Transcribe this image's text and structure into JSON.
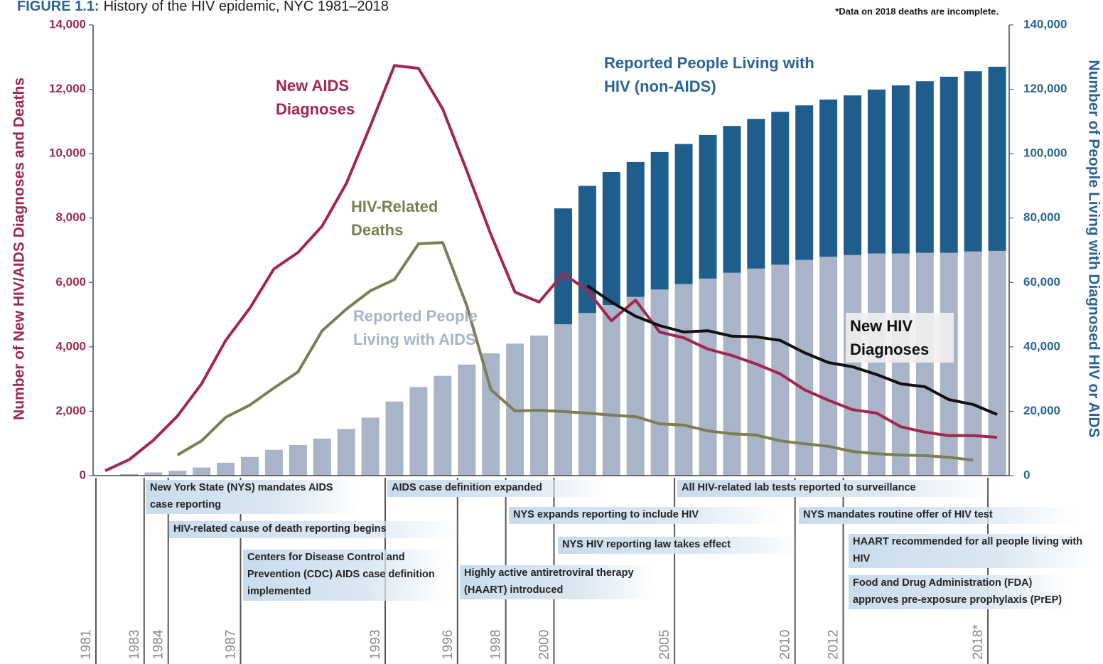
{
  "chart_data": {
    "type": "combo",
    "figure_label": "FIGURE 1.1:",
    "title": "History of the HIV epidemic, NYC 1981–2018",
    "footnote": "*Data on 2018 deaths are incomplete.",
    "y_label": "Number of New HIV/AIDS Diagnoses and Deaths",
    "y2_label": "Number of People Living with Diagnosed HIV or AIDS",
    "x": [
      1981,
      1982,
      1983,
      1984,
      1985,
      1986,
      1987,
      1988,
      1989,
      1990,
      1991,
      1992,
      1993,
      1994,
      1995,
      1996,
      1997,
      1998,
      1999,
      2000,
      2001,
      2002,
      2003,
      2004,
      2005,
      2006,
      2007,
      2008,
      2009,
      2010,
      2011,
      2012,
      2013,
      2014,
      2015,
      2016,
      2017,
      2018
    ],
    "xlim": [
      1980.5,
      2018.5
    ],
    "xticks": [
      1981,
      1983,
      1984,
      1987,
      1993,
      1996,
      1998,
      2000,
      2005,
      2010,
      2012,
      {
        "value": 2018,
        "label": "2018*"
      }
    ],
    "ylim": [
      0,
      14000
    ],
    "yticks": [
      0,
      {
        "value": 2000,
        "label": "2,000"
      },
      {
        "value": 4000,
        "label": "4,000"
      },
      {
        "value": 6000,
        "label": "6,000"
      },
      {
        "value": 8000,
        "label": "8,000"
      },
      {
        "value": 10000,
        "label": "10,000"
      },
      {
        "value": 12000,
        "label": "12,000"
      },
      {
        "value": 14000,
        "label": "14,000"
      }
    ],
    "y2lim": [
      0,
      140000
    ],
    "y2ticks": [
      0,
      {
        "value": 20000,
        "label": "20,000"
      },
      {
        "value": 40000,
        "label": "40,000"
      },
      {
        "value": 60000,
        "label": "60,000"
      },
      {
        "value": 80000,
        "label": "80,000"
      },
      {
        "value": 100000,
        "label": "100,000"
      },
      {
        "value": 120000,
        "label": "120,000"
      },
      {
        "value": 140000,
        "label": "140,000"
      }
    ],
    "stacked": true,
    "series": [
      {
        "name": "Reported People Living with AIDS",
        "type": "bar",
        "axis": "y2",
        "color": "#a9b4c8",
        "values": [
          100,
          500,
          1000,
          1500,
          2500,
          4000,
          5800,
          8000,
          9500,
          11500,
          14500,
          18000,
          23000,
          27500,
          31000,
          34500,
          38000,
          41000,
          43500,
          47000,
          50500,
          53000,
          55500,
          57800,
          59500,
          61200,
          63000,
          64300,
          65500,
          67000,
          68000,
          68500,
          69000,
          69000,
          69200,
          69200,
          69600,
          69800
        ]
      },
      {
        "name": "Reported People Living with HIV (non-AIDS)",
        "type": "bar",
        "axis": "y2",
        "color": "#1f5d8c",
        "values": [
          null,
          null,
          null,
          null,
          null,
          null,
          null,
          null,
          null,
          null,
          null,
          null,
          null,
          null,
          null,
          null,
          null,
          null,
          null,
          36000,
          39500,
          41300,
          41900,
          42700,
          43500,
          44600,
          45600,
          46500,
          47500,
          48000,
          48800,
          49600,
          50900,
          52200,
          53300,
          54700,
          56000,
          57200
        ]
      },
      {
        "name": "New AIDS Diagnoses",
        "type": "line",
        "color": "#a3264f",
        "values": [
          150,
          500,
          1100,
          1850,
          2850,
          4200,
          5200,
          6420,
          6930,
          7750,
          9070,
          10860,
          12740,
          12650,
          11390,
          9470,
          7490,
          5700,
          5390,
          6270,
          5760,
          4810,
          5450,
          4460,
          4280,
          3930,
          3730,
          3470,
          3160,
          2670,
          2340,
          2050,
          1940,
          1520,
          1350,
          1240,
          1240,
          1190
        ]
      },
      {
        "name": "HIV-Related Deaths",
        "type": "line",
        "color": "#7b7f52",
        "values": [
          null,
          null,
          null,
          640,
          1080,
          1810,
          2190,
          2720,
          3220,
          4500,
          5170,
          5740,
          6090,
          7200,
          7240,
          5280,
          2670,
          2010,
          2030,
          1990,
          1940,
          1880,
          1830,
          1610,
          1570,
          1390,
          1300,
          1260,
          1080,
          990,
          910,
          750,
          680,
          640,
          620,
          570,
          480,
          null
        ]
      },
      {
        "name": "New HIV Diagnoses",
        "type": "line",
        "color": "#111111",
        "values": [
          null,
          null,
          null,
          null,
          null,
          null,
          null,
          null,
          null,
          null,
          null,
          null,
          null,
          null,
          null,
          null,
          null,
          null,
          null,
          null,
          5900,
          5390,
          4950,
          4660,
          4460,
          4500,
          4330,
          4310,
          4200,
          3820,
          3510,
          3380,
          3140,
          2850,
          2760,
          2360,
          2210,
          1900
        ]
      }
    ],
    "events": [
      "New York State (NYS) mandates AIDS case reporting",
      "HIV-related cause of death reporting begins",
      "Centers for Disease Control and Prevention (CDC) AIDS case definition implemented",
      "AIDS case definition expanded",
      "Highly active antiretroviral therapy (HAART) introduced",
      "NYS expands reporting to include HIV",
      "NYS HIV reporting law takes effect",
      "All HIV-related lab tests reported to surveillance",
      "NYS mandates routine offer of HIV test",
      "HAART recommended for all people living with HIV",
      "Food and Drug Administration (FDA) approves pre-exposure prophylaxis (PrEP)"
    ]
  }
}
